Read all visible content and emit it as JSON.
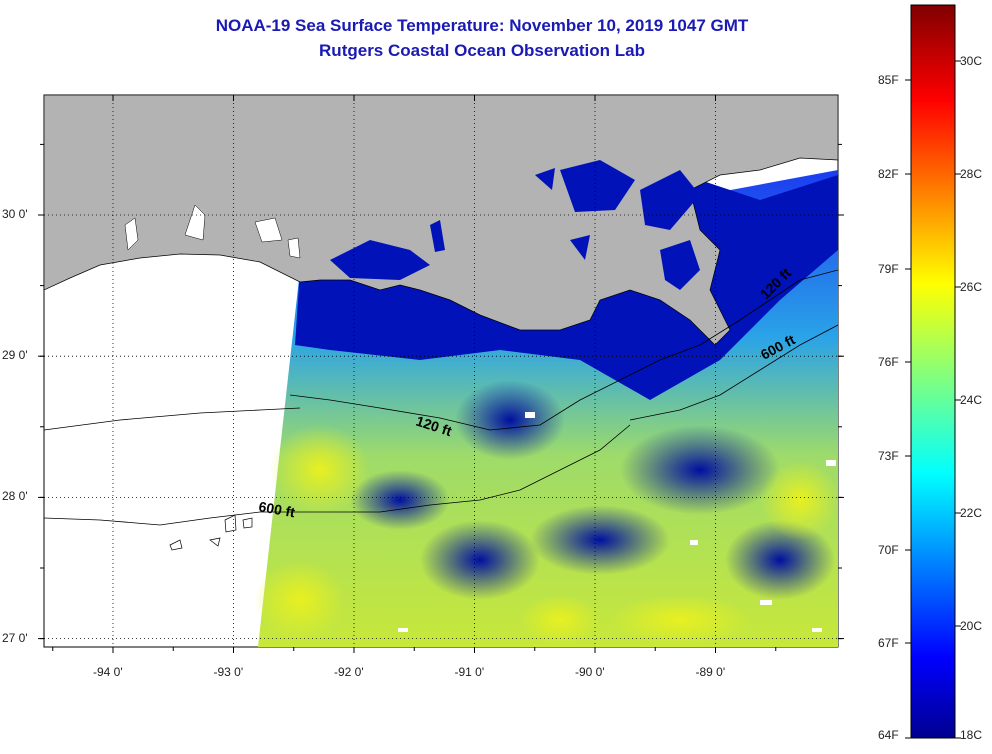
{
  "header": {
    "title": "NOAA-19 Sea Surface Temperature:  November 10, 2019 1047 GMT",
    "subtitle": "Rutgers Coastal Ocean Observation Lab"
  },
  "map": {
    "lon_ticks": [
      {
        "value": -94,
        "label": "-94 0'"
      },
      {
        "value": -93,
        "label": "-93 0'"
      },
      {
        "value": -92,
        "label": "-92 0'"
      },
      {
        "value": -91,
        "label": "-91 0'"
      },
      {
        "value": -90,
        "label": "-90 0'"
      },
      {
        "value": -89,
        "label": "-89 0'"
      }
    ],
    "lat_ticks": [
      {
        "value": 30,
        "label": "30 0'"
      },
      {
        "value": 29,
        "label": "29 0'"
      },
      {
        "value": 28,
        "label": "28 0'"
      },
      {
        "value": 27,
        "label": "27 0'"
      }
    ],
    "contour_labels": [
      {
        "text": "120 ft"
      },
      {
        "text": "600 ft"
      },
      {
        "text": "120 ft"
      },
      {
        "text": "600 ft"
      }
    ],
    "colors": {
      "land": "#b3b3b3",
      "no_data": "#ffffff",
      "title": "#1a1ab4"
    }
  },
  "colorbar": {
    "fahrenheit_labels": [
      "85F",
      "82F",
      "79F",
      "76F",
      "73F",
      "70F",
      "67F",
      "64F"
    ],
    "celsius_labels": [
      "30C",
      "28C",
      "26C",
      "24C",
      "22C",
      "20C",
      "18C"
    ]
  }
}
